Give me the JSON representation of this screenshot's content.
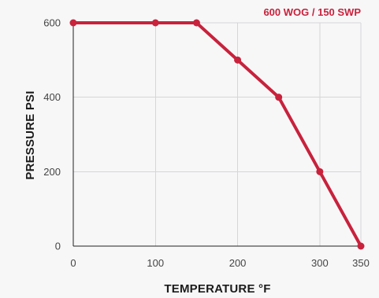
{
  "colors": {
    "background": "#f7f7f8",
    "grid": "#d5d6d8",
    "axis": "#222222",
    "series": "#c8223c",
    "text": "#444444"
  },
  "chart_data": {
    "type": "line",
    "title": "",
    "xlabel": "TEMPERATURE °F",
    "ylabel": "PRESSURE PSI",
    "xlim": [
      0,
      350
    ],
    "ylim": [
      0,
      600
    ],
    "x_ticks": [
      0,
      100,
      200,
      300,
      350
    ],
    "x_tick_labels": [
      "0",
      "100",
      "200",
      "300",
      "350"
    ],
    "y_ticks": [
      0,
      200,
      400,
      600
    ],
    "y_tick_labels": [
      "0",
      "200",
      "400",
      "600"
    ],
    "grid": true,
    "legend_position": "top-right",
    "series": [
      {
        "name": "600 WOG / 150 SWP",
        "color": "#c8223c",
        "x": [
          0,
          100,
          150,
          200,
          250,
          300,
          350
        ],
        "y": [
          600,
          600,
          600,
          500,
          400,
          200,
          0
        ]
      }
    ]
  }
}
